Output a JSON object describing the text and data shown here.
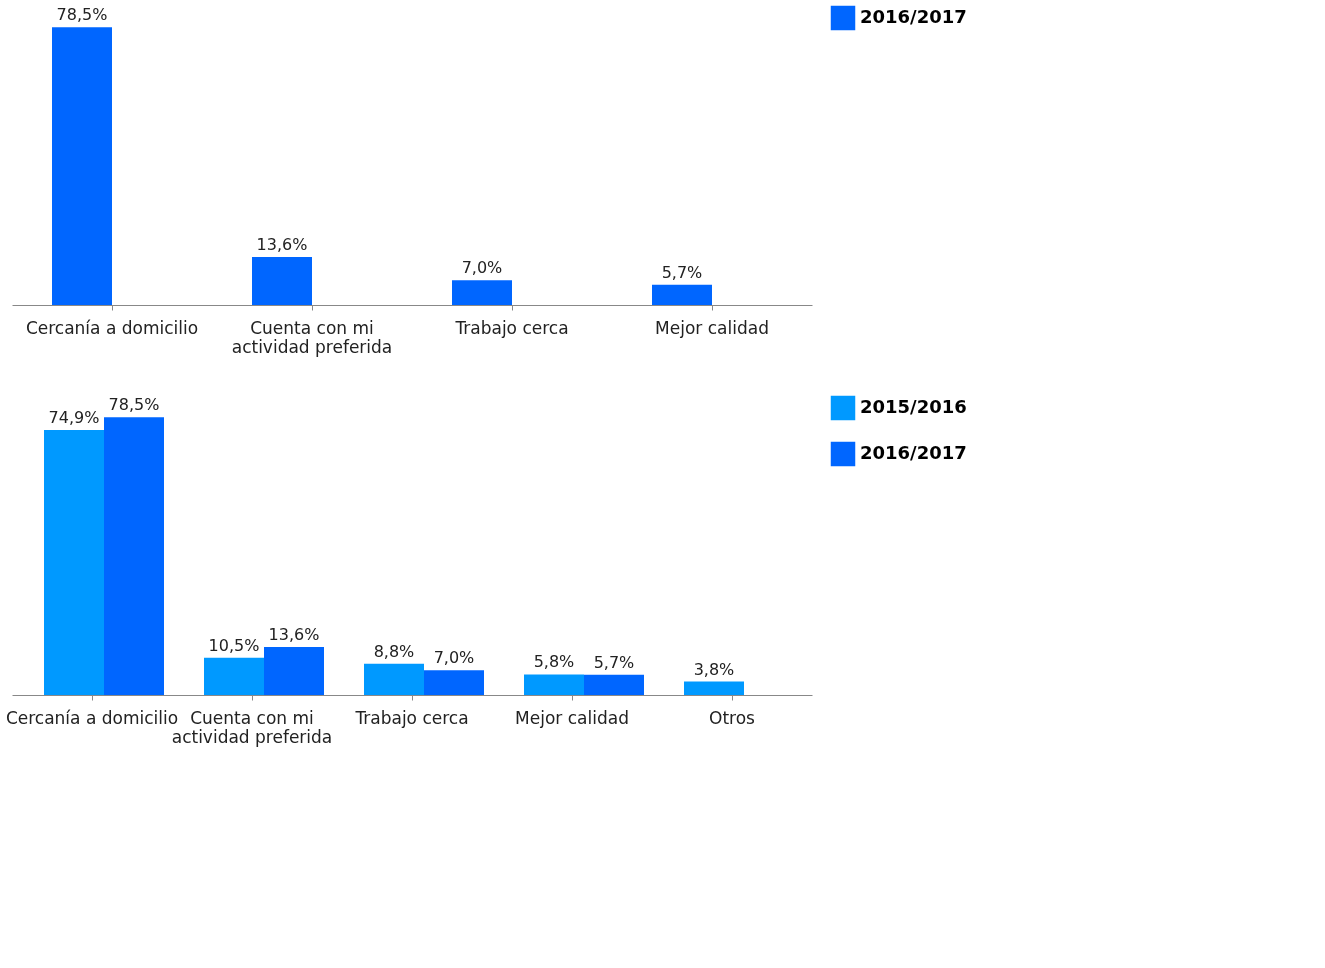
{
  "chart_data": [
    {
      "type": "bar",
      "categories": [
        "Cercanía a domicilio",
        "Cuenta con mi actividad preferida",
        "Trabajo cerca",
        "Mejor calidad"
      ],
      "series": [
        {
          "name": "2016/2017",
          "color": "#0066ff",
          "values": [
            78.5,
            13.6,
            7.0,
            5.7
          ],
          "value_labels": [
            "78,5%",
            "13,6%",
            "7,0%",
            "5,7%"
          ]
        }
      ],
      "legend": "right",
      "tick_labels": "x",
      "grid": false
    },
    {
      "type": "bar",
      "categories": [
        "Cercanía a domicilio",
        "Cuenta con mi actividad preferida",
        "Trabajo cerca",
        "Mejor calidad",
        "Otros"
      ],
      "series": [
        {
          "name": "2015/2016",
          "color": "#0099ff",
          "values": [
            74.9,
            10.5,
            8.8,
            5.8,
            3.8
          ],
          "value_labels": [
            "74,9%",
            "10,5%",
            "8,8%",
            "5,8%",
            "3,8%"
          ]
        },
        {
          "name": "2016/2017",
          "color": "#0066ff",
          "values": [
            78.5,
            13.6,
            7.0,
            5.7,
            null
          ],
          "value_labels": [
            "78,5%",
            "13,6%",
            "7,0%",
            "5,7%",
            null
          ]
        }
      ],
      "legend": "right",
      "tick_labels": "x",
      "grid": false
    }
  ]
}
